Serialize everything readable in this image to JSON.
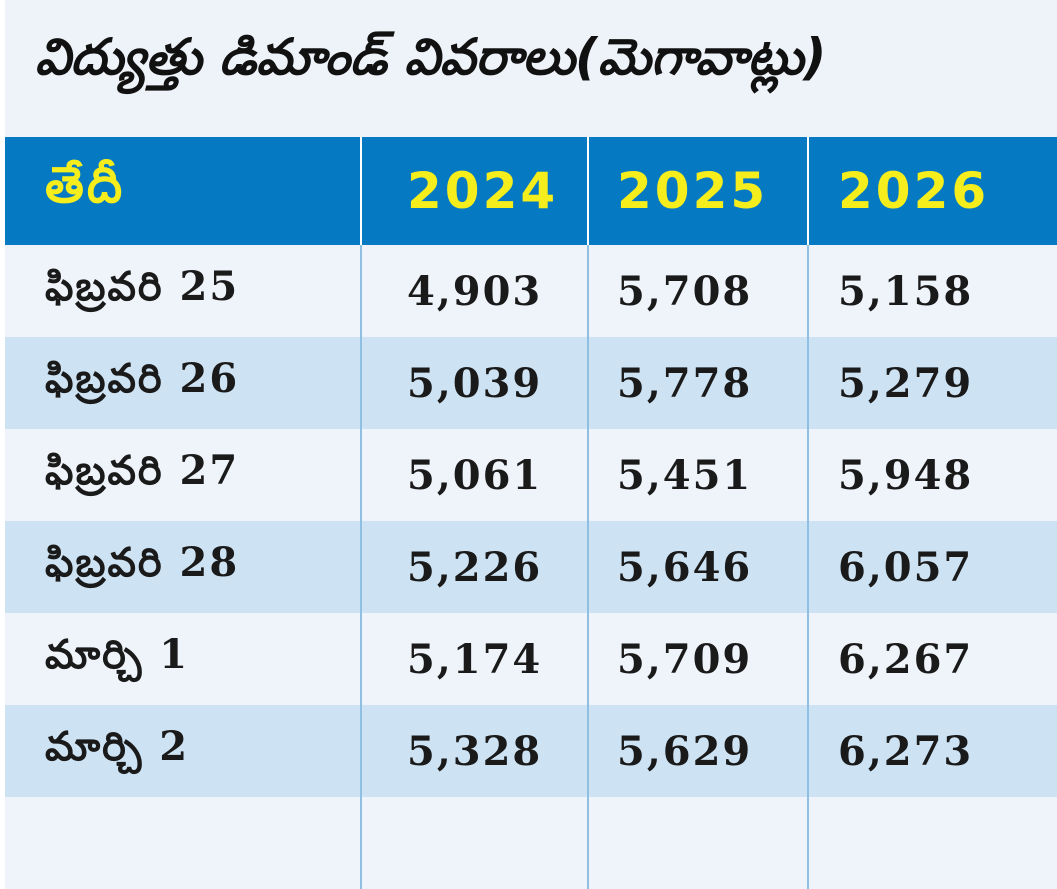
{
  "title": "విద్యుత్తు డిమాండ్ వివరాలు(మెగావాట్లు)",
  "chart_data": {
    "type": "table",
    "title": "విద్యుత్తు డిమాండ్ వివరాలు(మెగావాట్లు)",
    "columns": [
      "తేదీ",
      "2024",
      "2025",
      "2026"
    ],
    "rows": [
      [
        "ఫిబ్రవరి 25",
        "4,903",
        "5,708",
        "5,158"
      ],
      [
        "ఫిబ్రవరి 26",
        "5,039",
        "5,778",
        "5,279"
      ],
      [
        "ఫిబ్రవరి 27",
        "5,061",
        "5,451",
        "5,948"
      ],
      [
        "ఫిబ్రవరి 28",
        "5,226",
        "5,646",
        "6,057"
      ],
      [
        "మార్చి 1",
        "5,174",
        "5,709",
        "6,267"
      ],
      [
        "మార్చి 2",
        "5,328",
        "5,629",
        "6,273"
      ]
    ]
  },
  "colors": {
    "header_bg": "#0679c3",
    "header_text": "#f5ee1c",
    "row_alt": "#cde3f3",
    "row": "#eef4fa"
  }
}
